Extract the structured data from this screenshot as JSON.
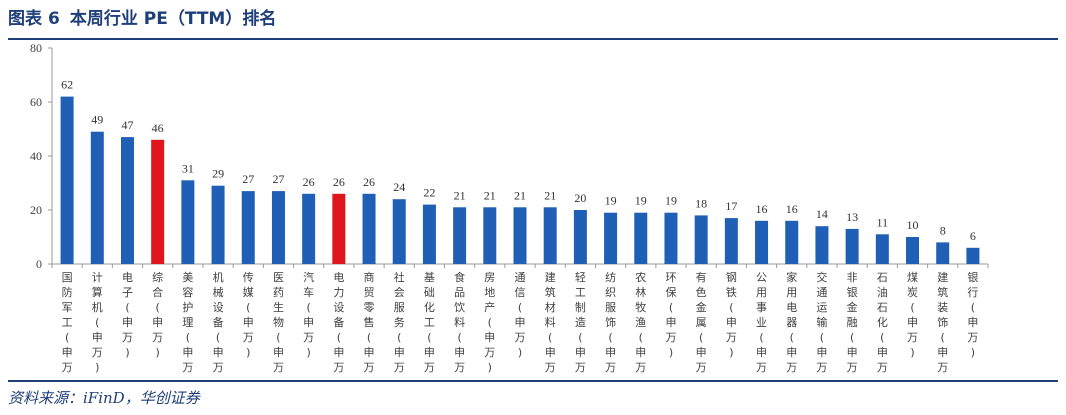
{
  "header": {
    "prefix": "图表",
    "number": "6",
    "title": "本周行业 PE（TTM）排名"
  },
  "source": "资料来源：iFinD，华创证券",
  "colors": {
    "bar": "#1f5fb5",
    "highlight": "#e0161e",
    "rule": "#1f3f7a"
  },
  "chart_data": {
    "type": "bar",
    "title": "本周行业 PE（TTM）排名",
    "xlabel": "",
    "ylabel": "",
    "ylim": [
      0,
      80
    ],
    "yticks": [
      0,
      20,
      40,
      60,
      80
    ],
    "grid": false,
    "legend": "none",
    "highlight_categories": [
      "综合(申万)",
      "电力设备(申万)"
    ],
    "categories": [
      "国防军工(申万)",
      "计算机(申万)",
      "电子(申万)",
      "综合(申万)",
      "美容护理(申万)",
      "机械设备(申万)",
      "传媒(申万)",
      "医药生物(申万)",
      "汽车(申万)",
      "电力设备(申万)",
      "商贸零售(申万)",
      "社会服务(申万)",
      "基础化工(申万)",
      "食品饮料(申万)",
      "房地产(申万)",
      "通信(申万)",
      "建筑材料(申万)",
      "轻工制造(申万)",
      "纺织服饰(申万)",
      "农林牧渔(申万)",
      "环保(申万)",
      "有色金属(申万)",
      "钢铁(申万)",
      "公用事业(申万)",
      "家用电器(申万)",
      "交通运输(申万)",
      "非银金融(申万)",
      "石油石化(申万)",
      "煤炭(申万)",
      "建筑装饰(申万)",
      "银行(申万)"
    ],
    "values": [
      62,
      49,
      47,
      46,
      31,
      29,
      27,
      27,
      26,
      26,
      26,
      24,
      22,
      21,
      21,
      21,
      21,
      20,
      19,
      19,
      19,
      18,
      17,
      16,
      16,
      14,
      13,
      11,
      10,
      8,
      6
    ],
    "value_labels": [
      "62",
      "49",
      "47",
      "46",
      "31",
      "29",
      "27",
      "27",
      "26",
      "26",
      "26",
      "24",
      "22",
      "21",
      "21",
      "21",
      "21",
      "20",
      "19",
      "19",
      "19",
      "18",
      "17",
      "16",
      "16",
      "14",
      "13",
      "11",
      "10",
      "8",
      "6"
    ]
  }
}
